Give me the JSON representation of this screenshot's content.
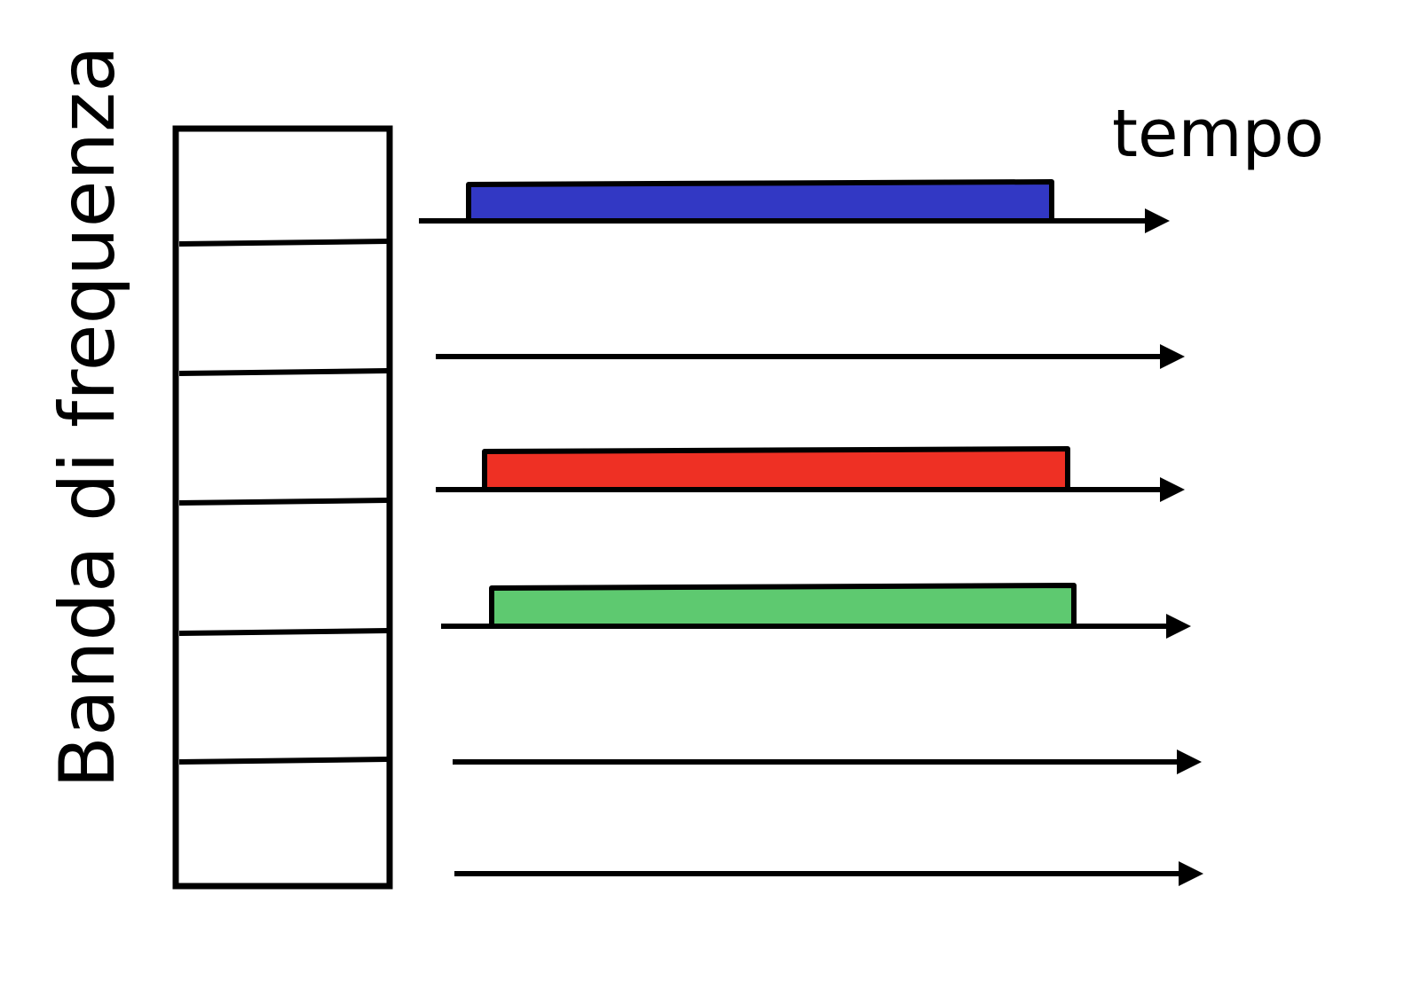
{
  "title": "",
  "axis": {
    "vertical_label": "Banda di frequenza",
    "time_label": "tempo"
  },
  "bands": [
    {
      "occupied": true,
      "color": "#3238c4"
    },
    {
      "occupied": false,
      "color": ""
    },
    {
      "occupied": true,
      "color": "#ee3024"
    },
    {
      "occupied": true,
      "color": "#5ec970"
    },
    {
      "occupied": false,
      "color": ""
    },
    {
      "occupied": false,
      "color": ""
    }
  ],
  "colors": {
    "stroke": "#000000",
    "background": "#ffffff"
  }
}
